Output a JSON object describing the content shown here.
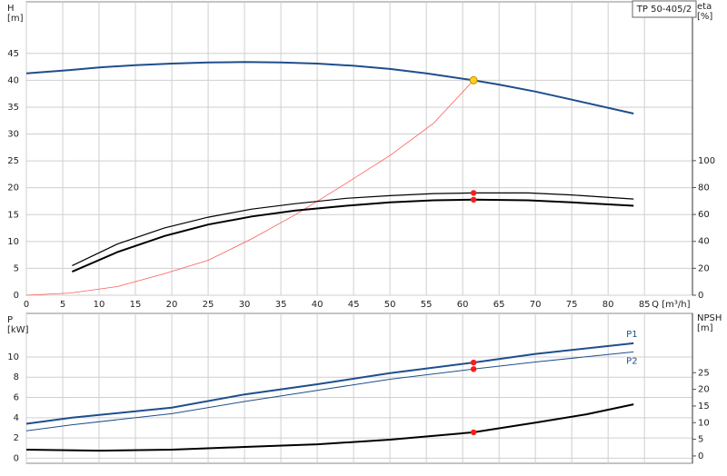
{
  "chart_data": [
    {
      "type": "line",
      "title": "TP 50-405/2",
      "y_label": "H",
      "y_unit": "[m]",
      "y2_label": "eta",
      "y2_unit": "[%]",
      "x_label": "Q [m³/h]",
      "xlim": [
        0,
        91.6
      ],
      "xticks": [
        0,
        5,
        10,
        15,
        20,
        25,
        30,
        35,
        40,
        45,
        50,
        55,
        60,
        65,
        70,
        75,
        80,
        85
      ],
      "ylim": [
        0,
        54.6
      ],
      "yticks": [
        0,
        5,
        10,
        15,
        20,
        25,
        30,
        35,
        40,
        45
      ],
      "y2lim": [
        0,
        218
      ],
      "y2ticks": [
        0,
        20,
        40,
        60,
        80,
        100
      ],
      "grid": true,
      "series": [
        {
          "color": "#1f4e8c",
          "width": 2,
          "x": [
            0,
            6,
            10,
            15,
            20,
            25,
            30,
            35,
            40,
            45,
            50,
            55,
            61.5,
            65,
            70,
            75,
            83.5
          ],
          "values": [
            41.3,
            41.9,
            42.4,
            42.8,
            43.1,
            43.3,
            43.4,
            43.3,
            43.1,
            42.7,
            42.1,
            41.3,
            40,
            39.2,
            37.9,
            36.4,
            33.8
          ]
        },
        {
          "color": "#ff5a5a",
          "width": 0.8,
          "x": [
            0,
            6,
            12.5,
            19,
            25,
            31,
            37,
            43,
            50,
            56,
            61.5
          ],
          "values": [
            0,
            0.4,
            1.6,
            4,
            6.5,
            10.5,
            15,
            20,
            26,
            32,
            40
          ]
        },
        {
          "color": "#000000",
          "width": 1.2,
          "axis": "y2",
          "x": [
            6.3,
            12.5,
            19,
            25,
            31,
            37,
            44,
            50,
            56,
            61.5,
            69,
            75,
            83.5
          ],
          "values": [
            22,
            38,
            50,
            58,
            64,
            68,
            72,
            74,
            75.5,
            76,
            76,
            74.5,
            71.5
          ]
        },
        {
          "color": "#000000",
          "width": 2,
          "axis": "y2",
          "x": [
            6.3,
            12.5,
            19,
            25,
            31,
            37,
            44,
            50,
            56,
            61.5,
            69,
            75,
            83.5
          ],
          "values": [
            17.5,
            32,
            44,
            52.5,
            58.5,
            63,
            66.5,
            69,
            70.5,
            71,
            70.5,
            69,
            66.5
          ]
        }
      ],
      "points": [
        {
          "x": 61.5,
          "y": 40,
          "color": "#ffd21f"
        },
        {
          "x": 61.5,
          "y": 76,
          "axis": "y2",
          "color": "#ff1a1a"
        },
        {
          "x": 61.5,
          "y": 71,
          "axis": "y2",
          "color": "#ff1a1a"
        }
      ]
    },
    {
      "type": "line",
      "y_label": "P",
      "y_unit": "[kW]",
      "y2_label": "NPSH",
      "y2_unit": "[m]",
      "xlim": [
        0,
        91.6
      ],
      "xticks": [
        0,
        5,
        10,
        15,
        20,
        25,
        30,
        35,
        40,
        45,
        50,
        55,
        60,
        65,
        70,
        75,
        80,
        85
      ],
      "ylim": [
        -0.5,
        14.3
      ],
      "yticks": [
        0,
        2,
        4,
        6,
        8,
        10
      ],
      "y2lim": [
        -2.2,
        42.8
      ],
      "y2ticks": [
        0,
        5,
        10,
        15,
        20,
        25
      ],
      "grid": true,
      "series": [
        {
          "name": "P1",
          "color": "#1f4e8c",
          "width": 2,
          "x": [
            0,
            6.3,
            20,
            30,
            40,
            50,
            61.5,
            70,
            83.5
          ],
          "values": [
            3.4,
            4.0,
            5.0,
            6.3,
            7.3,
            8.4,
            9.45,
            10.3,
            11.35
          ]
        },
        {
          "name": "P2",
          "color": "#1f4e8c",
          "width": 1,
          "x": [
            0,
            6.3,
            20,
            30,
            40,
            50,
            61.5,
            70,
            83.5
          ],
          "values": [
            2.7,
            3.3,
            4.4,
            5.6,
            6.7,
            7.8,
            8.8,
            9.5,
            10.5
          ]
        },
        {
          "color": "#000000",
          "width": 2,
          "axis": "y2",
          "x": [
            0,
            10,
            20,
            30,
            40,
            50,
            61.5,
            70,
            77,
            83.5
          ],
          "values": [
            1.9,
            1.6,
            1.9,
            2.7,
            3.5,
            4.9,
            7.1,
            10,
            12.5,
            15.5
          ]
        }
      ],
      "points": [
        {
          "x": 61.5,
          "y": 9.45,
          "color": "#ff1a1a"
        },
        {
          "x": 61.5,
          "y": 8.8,
          "color": "#ff1a1a"
        },
        {
          "x": 61.5,
          "y": 7.1,
          "axis": "y2",
          "color": "#ff1a1a"
        }
      ]
    }
  ]
}
